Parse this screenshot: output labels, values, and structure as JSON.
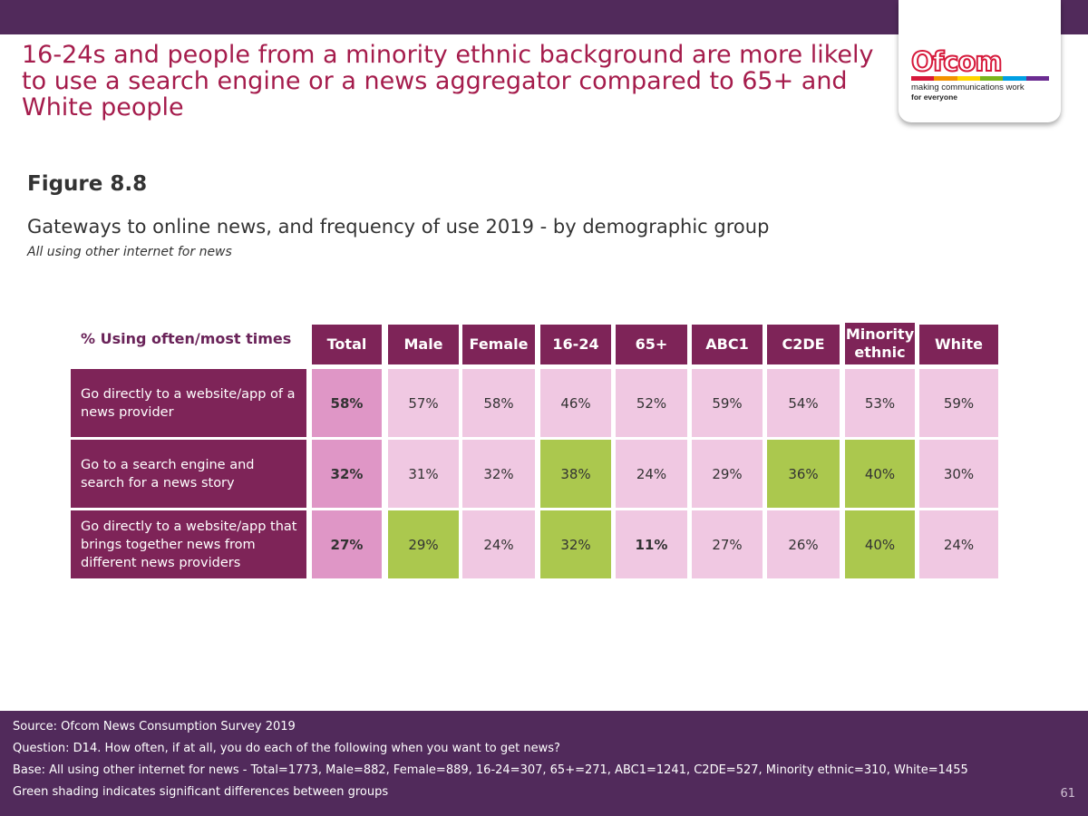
{
  "headline": "16-24s and people from a minority ethnic background are more likely to use a search engine or a news aggregator compared to 65+ and White people",
  "logo": {
    "word": "Ofcom",
    "tagline_1": "making communications work",
    "tagline_2": "for everyone",
    "stripe_colors": [
      "#d6193b",
      "#f39200",
      "#ffd500",
      "#7ab51d",
      "#009fe3",
      "#6b2c91"
    ]
  },
  "figure": {
    "label": "Figure 8.8",
    "title": "Gateways to online news, and frequency of use 2019 - by demographic group",
    "subtitle": "All using other internet for news"
  },
  "chart_data": {
    "type": "table",
    "header_label": "% Using often/most times",
    "columns": [
      "Total",
      "Male",
      "Female",
      "16-24",
      "65+",
      "ABC1",
      "C2DE",
      "Minority ethnic",
      "White"
    ],
    "rows": [
      {
        "label": "Go directly to a website/app of a news provider",
        "values": [
          "58%",
          "57%",
          "58%",
          "46%",
          "52%",
          "59%",
          "54%",
          "53%",
          "59%"
        ],
        "significant": [
          false,
          false,
          false,
          false,
          false,
          false,
          false,
          false,
          false
        ],
        "bold": [
          true,
          false,
          false,
          false,
          false,
          false,
          false,
          false,
          false
        ]
      },
      {
        "label": "Go to a search engine and search for a news story",
        "values": [
          "32%",
          "31%",
          "32%",
          "38%",
          "24%",
          "29%",
          "36%",
          "40%",
          "30%"
        ],
        "significant": [
          false,
          false,
          false,
          true,
          false,
          false,
          true,
          true,
          false
        ],
        "bold": [
          true,
          false,
          false,
          false,
          false,
          false,
          false,
          false,
          false
        ]
      },
      {
        "label": "Go directly to a website/app that brings together news from different news providers",
        "values": [
          "27%",
          "29%",
          "24%",
          "32%",
          "11%",
          "27%",
          "26%",
          "40%",
          "24%"
        ],
        "significant": [
          false,
          true,
          false,
          true,
          false,
          false,
          false,
          true,
          false
        ],
        "bold": [
          true,
          false,
          false,
          false,
          true,
          false,
          false,
          false,
          false
        ]
      }
    ],
    "colors": {
      "header": "#7e2458",
      "total_cell": "#df96c6",
      "normal_cell": "#f0c8e2",
      "significant_cell": "#abc84e"
    }
  },
  "footer": {
    "source": "Source: Ofcom News Consumption Survey 2019",
    "question": "Question: D14. How often, if at all, you do each of the following when you want to get news?",
    "base": "Base: All using other internet for news - Total=1773, Male=882, Female=889, 16-24=307, 65+=271, ABC1=1241, C2DE=527, Minority ethnic=310, White=1455",
    "note": "Green shading indicates significant differences between groups",
    "page_number": "61"
  }
}
